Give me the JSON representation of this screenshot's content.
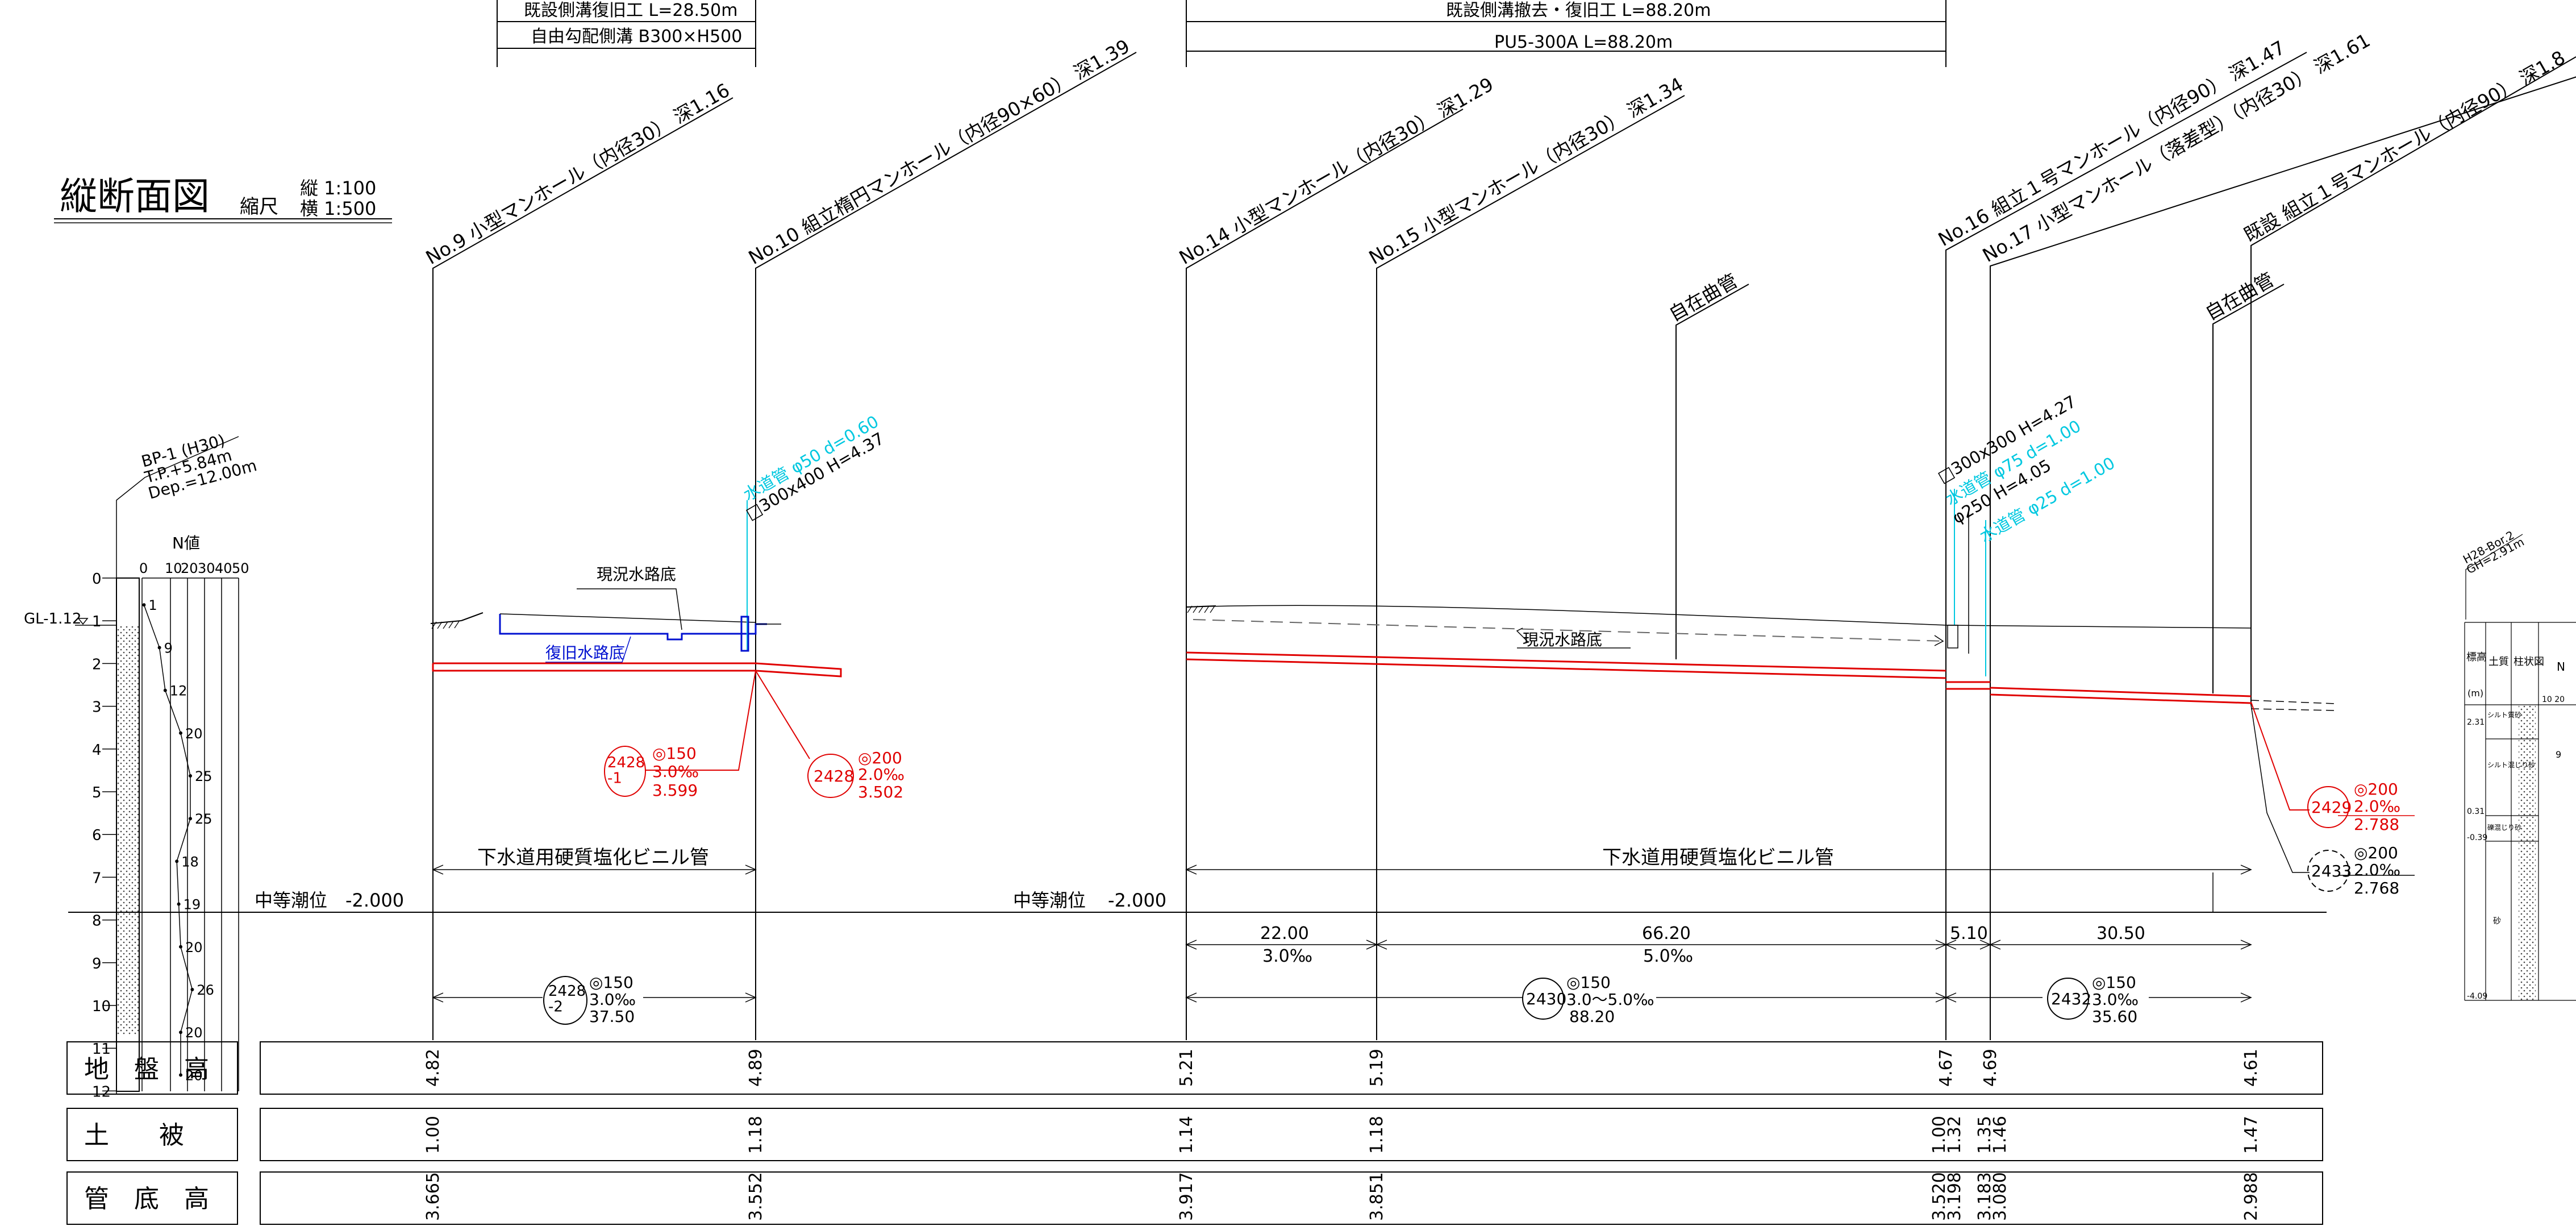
{
  "title": {
    "main": "縦断面図",
    "scale_label": "縮尺",
    "vertical": "縦 1:100",
    "horizontal": "横 1:500"
  },
  "top_dims": {
    "left_line1": "既設側溝復旧工 L=28.50m",
    "left_line2": "自由勾配側溝 B300×H500",
    "right_line1": "既設側溝撤去・復旧工 L=88.20m",
    "right_line2": "PU5-300A L=88.20m"
  },
  "manholes": {
    "no9": "No.9 小型マンホール（内径30） 深1.16",
    "no10": "No.10 組立楕円マンホール（内径90×60） 深1.39",
    "no14": "No.14 小型マンホール（内径30） 深1.29",
    "no15": "No.15 小型マンホール（内径30） 深1.34",
    "no16": "No.16 組立１号マンホール（内径90） 深1.47",
    "no17": "No.17 小型マンホール（落差型）（内径30） 深1.61",
    "existing": "既設 組立１号マンホール（内径90） 深1.8"
  },
  "flexible_pipe": "自在曲管",
  "boring": {
    "name": "BP-1 (H30)",
    "tp": "T.P.+5.84m",
    "dep": "Dep.=12.00m",
    "n_value": "N値",
    "n_scale": [
      "0",
      "10",
      "20",
      "30",
      "40",
      "50"
    ],
    "gl": "GL-1.12",
    "depths": [
      "0",
      "1",
      "2",
      "3",
      "4",
      "5",
      "6",
      "7",
      "8",
      "9",
      "10",
      "11",
      "12"
    ],
    "n_values": [
      1,
      9,
      12,
      20,
      25,
      25,
      18,
      19,
      20,
      26,
      20,
      20
    ]
  },
  "utilities": {
    "water1": "水道管 φ50 d=0.60",
    "box1": "□300x400 H=4.37",
    "box2": "□300x300 H=4.27",
    "water2": "水道管 φ75 d=1.00",
    "pipe250": "φ250 H=4.05",
    "water3": "水道管 φ25 d=1.00"
  },
  "channel_labels": {
    "current1": "現況水路底",
    "restored": "復旧水路底",
    "current2": "現況水路底"
  },
  "pipes": [
    {
      "id": "2428\n-1",
      "line1": "◎150",
      "line2": "3.0‰",
      "line3": "3.599"
    },
    {
      "id": "2428",
      "line1": "◎200",
      "line2": "2.0‰",
      "line3": "3.502"
    },
    {
      "id": "2429",
      "line1": "◎200",
      "line2": "2.0‰",
      "line3": "2.788"
    },
    {
      "id": "2433",
      "line1": "◎200",
      "line2": "2.0‰",
      "line3": "2.768"
    }
  ],
  "pipe_material": "下水道用硬質塩化ビニル管",
  "tide": {
    "label": "中等潮位",
    "value": "-2.000"
  },
  "spans": {
    "s1": {
      "length": "22.00",
      "slope": "3.0‰"
    },
    "s2": {
      "length": "66.20",
      "slope": "5.0‰"
    },
    "s3": {
      "length": "5.10"
    },
    "s4": {
      "length": "30.50"
    }
  },
  "sections": [
    {
      "id": "2428\n-2",
      "line1": "◎150",
      "line2": "3.0‰",
      "line3": "37.50"
    },
    {
      "id": "2430",
      "line1": "◎150",
      "line2": "3.0～5.0‰",
      "line3": "88.20"
    },
    {
      "id": "2432",
      "line1": "◎150",
      "line2": "3.0‰",
      "line3": "35.60"
    }
  ],
  "table": {
    "ground_label": "地　盤　高",
    "cover_label": "土　　被",
    "invert_label": "管　底　高",
    "ground": [
      "4.82",
      "4.89",
      "5.21",
      "5.19",
      "4.67",
      "4.69",
      "4.61"
    ],
    "cover": [
      "1.00",
      "1.18",
      "1.14",
      "1.18",
      "1.00",
      "1.32",
      "1.35",
      "1.46",
      "1.47"
    ],
    "invert": [
      "3.665",
      "3.552",
      "3.917",
      "3.851",
      "3.520",
      "3.198",
      "3.183",
      "3.080",
      "2.988"
    ]
  },
  "right_boring": {
    "name": "H28-Bor.2",
    "gh": "GH=2.91m",
    "h_label": "標高",
    "h_unit": "(m)",
    "soil": "土質",
    "col": "柱状図",
    "n": "N",
    "elev": [
      "2.31",
      "0.31",
      "-0.39",
      "-4.09"
    ],
    "layers": [
      "シルト質砂",
      "シルト混じり砂",
      "礫混じり砂",
      "砂"
    ],
    "scale": "10 20",
    "nval": "9"
  },
  "colors": {
    "line": "#000000",
    "red": "#e00000",
    "cyan": "#00c8e0",
    "blue": "#0010d0"
  }
}
